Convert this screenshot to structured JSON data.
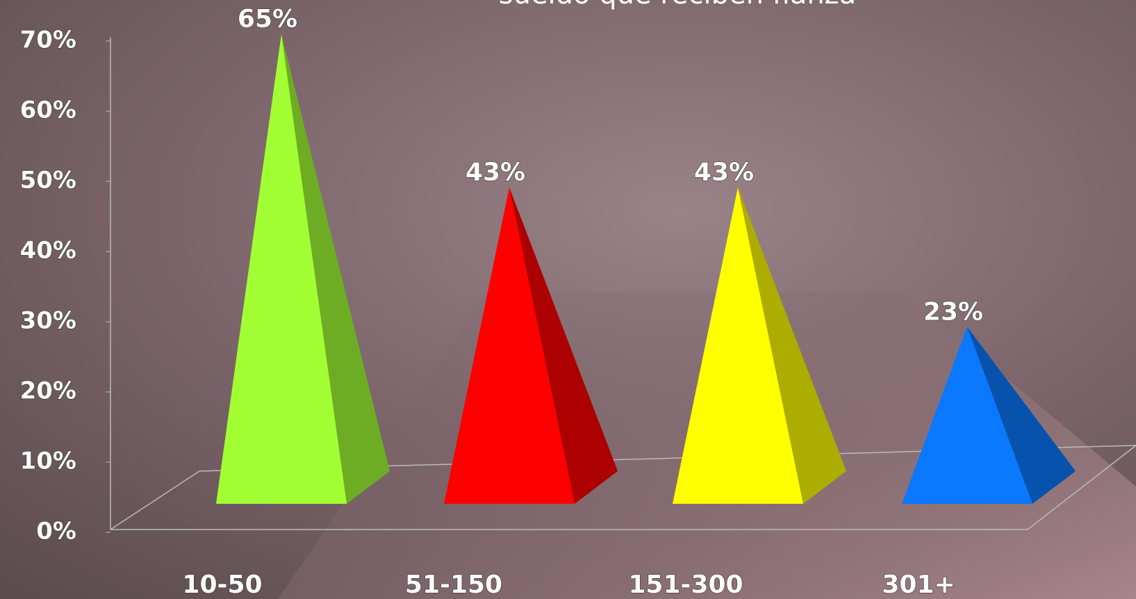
{
  "chart_data": {
    "type": "pyramid",
    "title": "sueldo que reciben fianza",
    "categories": [
      "10-50",
      "51-150",
      "151-300",
      "301+"
    ],
    "values": [
      65,
      43,
      43,
      23
    ],
    "value_labels": [
      "65%",
      "43%",
      "43%",
      "23%"
    ],
    "colors": [
      "#a2ff33",
      "#ff0000",
      "#ffff00",
      "#0a78ff"
    ],
    "ylim": [
      0,
      70
    ],
    "yticks": [
      {
        "value": 0,
        "label": "0%"
      },
      {
        "value": 10,
        "label": "10%"
      },
      {
        "value": 20,
        "label": "20%"
      },
      {
        "value": 30,
        "label": "30%"
      },
      {
        "value": 40,
        "label": "40%"
      },
      {
        "value": 50,
        "label": "50%"
      },
      {
        "value": 60,
        "label": "60%"
      },
      {
        "value": 70,
        "label": "70%"
      }
    ]
  }
}
